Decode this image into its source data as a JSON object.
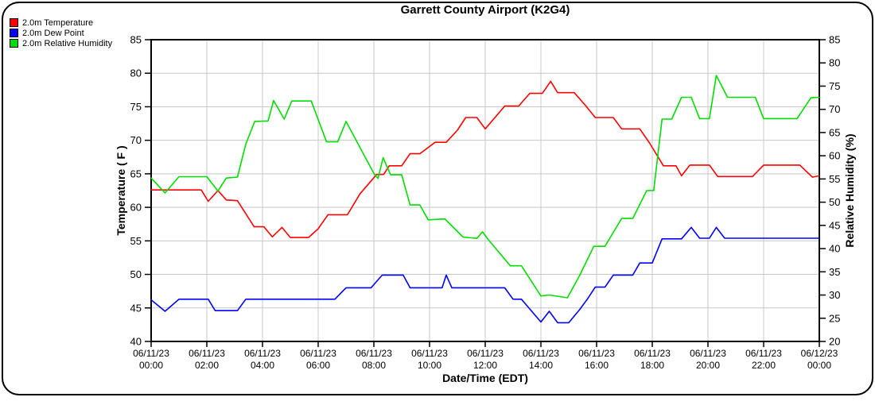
{
  "title": "Garrett County Airport (K2G4)",
  "colors": {
    "background": "#ffffff",
    "grid": "#c8c8c8",
    "axis": "#000000",
    "frame": "#000000"
  },
  "chart_data": {
    "type": "line",
    "title": "Garrett County Airport (K2G4)",
    "xlabel": "Date/Time (EDT)",
    "ylabel_left": "Temperature ( F )",
    "ylabel_right": "Relative Humidity (%)",
    "grid": true,
    "legend_position": "top-left",
    "x_axis": {
      "unit": "hours_since_2023-06-11_00:00_EDT",
      "min": 0,
      "max": 24,
      "tick_interval": 2,
      "tick_labels": [
        {
          "date": "06/11/23",
          "time": "00:00"
        },
        {
          "date": "06/11/23",
          "time": "02:00"
        },
        {
          "date": "06/11/23",
          "time": "04:00"
        },
        {
          "date": "06/11/23",
          "time": "06:00"
        },
        {
          "date": "06/11/23",
          "time": "08:00"
        },
        {
          "date": "06/11/23",
          "time": "10:00"
        },
        {
          "date": "06/11/23",
          "time": "12:00"
        },
        {
          "date": "06/11/23",
          "time": "14:00"
        },
        {
          "date": "06/11/23",
          "time": "16:00"
        },
        {
          "date": "06/11/23",
          "time": "18:00"
        },
        {
          "date": "06/11/23",
          "time": "20:00"
        },
        {
          "date": "06/11/23",
          "time": "22:00"
        },
        {
          "date": "06/12/23",
          "time": "00:00"
        }
      ]
    },
    "y_axis_left": {
      "min": 40,
      "max": 85,
      "ticks": [
        85,
        80,
        75,
        70,
        65,
        60,
        55,
        50,
        45,
        40
      ]
    },
    "y_axis_right": {
      "min": 20,
      "max": 85,
      "ticks": [
        85,
        80,
        75,
        70,
        65,
        60,
        55,
        50,
        45,
        40,
        35,
        30,
        25,
        20
      ]
    },
    "series": [
      {
        "name": "2.0m Temperature",
        "color": "#ff0000",
        "axis": "left",
        "points": [
          [
            0,
            62.6
          ],
          [
            1.8,
            62.6
          ],
          [
            2.05,
            60.9
          ],
          [
            2.4,
            62.5
          ],
          [
            2.7,
            61.1
          ],
          [
            3.1,
            61.0
          ],
          [
            3.7,
            57.1
          ],
          [
            4.05,
            57.1
          ],
          [
            4.35,
            55.6
          ],
          [
            4.7,
            57.0
          ],
          [
            5.0,
            55.5
          ],
          [
            5.65,
            55.5
          ],
          [
            6.0,
            56.8
          ],
          [
            6.35,
            58.9
          ],
          [
            7.05,
            58.9
          ],
          [
            7.5,
            62.0
          ],
          [
            8.1,
            64.9
          ],
          [
            8.35,
            64.9
          ],
          [
            8.55,
            66.2
          ],
          [
            9.0,
            66.2
          ],
          [
            9.3,
            68.0
          ],
          [
            9.65,
            68.0
          ],
          [
            10.2,
            69.7
          ],
          [
            10.6,
            69.7
          ],
          [
            11.0,
            71.5
          ],
          [
            11.3,
            73.4
          ],
          [
            11.7,
            73.4
          ],
          [
            12.0,
            71.7
          ],
          [
            12.7,
            75.1
          ],
          [
            13.2,
            75.1
          ],
          [
            13.6,
            77.0
          ],
          [
            14.05,
            77.0
          ],
          [
            14.35,
            78.8
          ],
          [
            14.6,
            77.1
          ],
          [
            15.2,
            77.1
          ],
          [
            15.6,
            75.2
          ],
          [
            15.95,
            73.4
          ],
          [
            16.6,
            73.4
          ],
          [
            16.9,
            71.7
          ],
          [
            17.55,
            71.7
          ],
          [
            17.9,
            69.6
          ],
          [
            18.4,
            66.2
          ],
          [
            18.85,
            66.2
          ],
          [
            19.05,
            64.7
          ],
          [
            19.35,
            66.3
          ],
          [
            20.05,
            66.3
          ],
          [
            20.35,
            64.6
          ],
          [
            21.6,
            64.6
          ],
          [
            22.0,
            66.3
          ],
          [
            23.3,
            66.3
          ],
          [
            23.75,
            64.5
          ],
          [
            24,
            64.7
          ]
        ]
      },
      {
        "name": "2.0m Dew Point",
        "color": "#0000ff",
        "axis": "left",
        "points": [
          [
            0,
            46.2
          ],
          [
            0.5,
            44.5
          ],
          [
            1.0,
            46.3
          ],
          [
            2.05,
            46.3
          ],
          [
            2.3,
            44.6
          ],
          [
            3.1,
            44.6
          ],
          [
            3.4,
            46.3
          ],
          [
            6.6,
            46.3
          ],
          [
            7.0,
            48.0
          ],
          [
            7.9,
            48.0
          ],
          [
            8.3,
            49.9
          ],
          [
            9.05,
            49.9
          ],
          [
            9.3,
            48.0
          ],
          [
            10.45,
            48.0
          ],
          [
            10.6,
            49.9
          ],
          [
            10.8,
            48.0
          ],
          [
            12.7,
            48.0
          ],
          [
            13.0,
            46.3
          ],
          [
            13.3,
            46.3
          ],
          [
            14.0,
            42.9
          ],
          [
            14.3,
            44.5
          ],
          [
            14.6,
            42.8
          ],
          [
            15.0,
            42.8
          ],
          [
            15.4,
            44.8
          ],
          [
            15.7,
            46.5
          ],
          [
            15.95,
            48.1
          ],
          [
            16.3,
            48.1
          ],
          [
            16.6,
            49.9
          ],
          [
            17.3,
            49.9
          ],
          [
            17.55,
            51.7
          ],
          [
            18.0,
            51.7
          ],
          [
            18.35,
            55.3
          ],
          [
            19.05,
            55.3
          ],
          [
            19.4,
            57.0
          ],
          [
            19.7,
            55.4
          ],
          [
            20.05,
            55.4
          ],
          [
            20.3,
            57.0
          ],
          [
            20.6,
            55.4
          ],
          [
            24,
            55.4
          ]
        ]
      },
      {
        "name": "2.0m Relative Humidity",
        "color": "#00dd00",
        "axis": "right",
        "points": [
          [
            0,
            55.2
          ],
          [
            0.5,
            52.0
          ],
          [
            1.0,
            55.5
          ],
          [
            2.0,
            55.5
          ],
          [
            2.4,
            52.4
          ],
          [
            2.7,
            55.2
          ],
          [
            3.1,
            55.4
          ],
          [
            3.4,
            62.5
          ],
          [
            3.72,
            67.4
          ],
          [
            4.2,
            67.5
          ],
          [
            4.4,
            71.9
          ],
          [
            4.78,
            67.9
          ],
          [
            5.05,
            71.8
          ],
          [
            5.75,
            71.8
          ],
          [
            6.3,
            63.0
          ],
          [
            6.7,
            63.0
          ],
          [
            7.0,
            67.4
          ],
          [
            8.0,
            56.2
          ],
          [
            8.15,
            55.1
          ],
          [
            8.33,
            59.6
          ],
          [
            8.6,
            55.9
          ],
          [
            9.0,
            55.9
          ],
          [
            9.3,
            49.4
          ],
          [
            9.65,
            49.4
          ],
          [
            9.95,
            46.2
          ],
          [
            10.55,
            46.4
          ],
          [
            11.2,
            42.5
          ],
          [
            11.7,
            42.2
          ],
          [
            11.9,
            43.6
          ],
          [
            12.1,
            42.0
          ],
          [
            12.9,
            36.3
          ],
          [
            13.3,
            36.3
          ],
          [
            14.0,
            29.8
          ],
          [
            14.3,
            30.0
          ],
          [
            14.95,
            29.4
          ],
          [
            15.4,
            34.3
          ],
          [
            15.9,
            40.5
          ],
          [
            16.3,
            40.5
          ],
          [
            16.9,
            46.5
          ],
          [
            17.3,
            46.5
          ],
          [
            17.8,
            52.5
          ],
          [
            18.05,
            52.5
          ],
          [
            18.35,
            67.9
          ],
          [
            18.7,
            67.9
          ],
          [
            19.05,
            72.6
          ],
          [
            19.4,
            72.6
          ],
          [
            19.7,
            68.0
          ],
          [
            20.05,
            68.0
          ],
          [
            20.3,
            77.3
          ],
          [
            20.7,
            72.6
          ],
          [
            21.7,
            72.6
          ],
          [
            22.0,
            68.0
          ],
          [
            23.2,
            68.0
          ],
          [
            23.7,
            72.5
          ],
          [
            24,
            72.6
          ]
        ]
      }
    ]
  }
}
